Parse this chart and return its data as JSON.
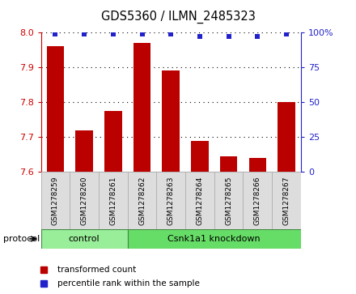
{
  "title": "GDS5360 / ILMN_2485323",
  "samples": [
    "GSM1278259",
    "GSM1278260",
    "GSM1278261",
    "GSM1278262",
    "GSM1278263",
    "GSM1278264",
    "GSM1278265",
    "GSM1278266",
    "GSM1278267"
  ],
  "transformed_counts": [
    7.96,
    7.72,
    7.775,
    7.97,
    7.89,
    7.69,
    7.645,
    7.64,
    7.8
  ],
  "percentile_ranks": [
    99,
    99,
    99,
    99,
    99,
    97,
    97,
    97,
    99
  ],
  "ylim_left": [
    7.6,
    8.0
  ],
  "yticks_left": [
    7.6,
    7.7,
    7.8,
    7.9,
    8.0
  ],
  "ylim_right": [
    0,
    100
  ],
  "yticks_right": [
    0,
    25,
    50,
    75,
    100
  ],
  "yticklabels_right": [
    "0",
    "25",
    "50",
    "75",
    "100%"
  ],
  "bar_color": "#bb0000",
  "dot_color": "#2222cc",
  "bar_width": 0.6,
  "groups": [
    {
      "label": "control",
      "indices": [
        0,
        1,
        2
      ],
      "color": "#99ee99"
    },
    {
      "label": "Csnk1a1 knockdown",
      "indices": [
        3,
        4,
        5,
        6,
        7,
        8
      ],
      "color": "#66dd66"
    }
  ],
  "protocol_label": "protocol",
  "legend_items": [
    {
      "label": "transformed count",
      "color": "#bb0000"
    },
    {
      "label": "percentile rank within the sample",
      "color": "#2222cc"
    }
  ],
  "tick_color_left": "#cc0000",
  "tick_color_right": "#2222cc",
  "background_color": "#ffffff",
  "plot_bg_color": "#ffffff",
  "sample_box_color": "#dddddd",
  "sample_box_edge_color": "#aaaaaa"
}
